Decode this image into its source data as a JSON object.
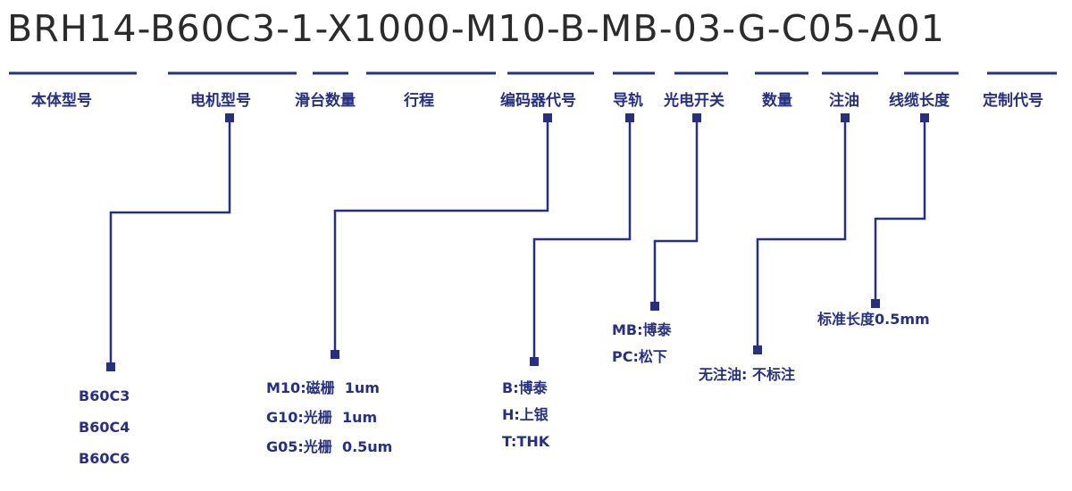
{
  "model_code": "BRH14-B60C3-1-X1000-M10-B-MB-03-G-C05-A01",
  "color": "#26307e",
  "labels": [
    "本体型号",
    "电机型号",
    "滑台数量",
    "行程",
    "编码器代号",
    "导轨",
    "光电开关",
    "数量",
    "注油",
    "线缆长度",
    "定制代号"
  ],
  "motor_options": [
    "B60C3",
    "B60C4",
    "B60C6"
  ],
  "encoder_options": [
    "M10:磁栅  1um",
    "G10:光栅  1um",
    "G05:光栅  0.5um"
  ],
  "rail_options": [
    "B:博泰",
    "H:上银",
    "T:THK"
  ],
  "sensor_options": [
    "MB:博泰",
    "PC:松下"
  ],
  "oil_options": [
    "无注油: 不标注"
  ],
  "cable_options": [
    "标准长度0.5mm"
  ]
}
